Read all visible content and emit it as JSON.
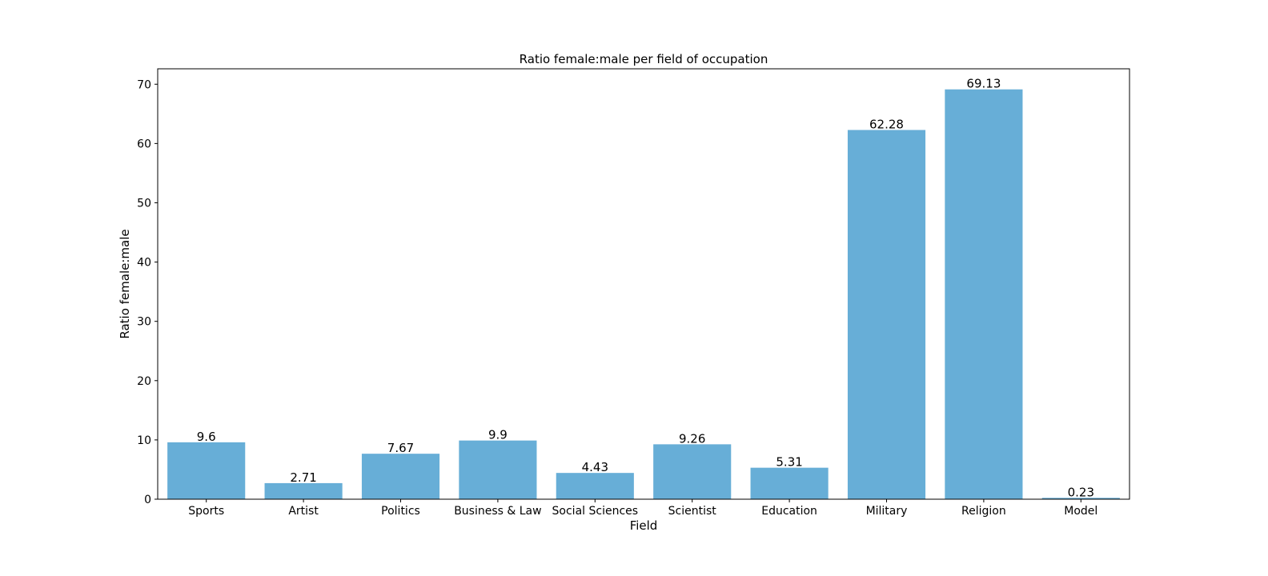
{
  "chart_data": {
    "type": "bar",
    "title": "Ratio female:male per field of occupation",
    "xlabel": "Field",
    "ylabel": "Ratio female:male",
    "categories": [
      "Sports",
      "Artist",
      "Politics",
      "Business & Law",
      "Social Sciences",
      "Scientist",
      "Education",
      "Military",
      "Religion",
      "Model"
    ],
    "values": [
      9.6,
      2.71,
      7.67,
      9.9,
      4.43,
      9.26,
      5.31,
      62.28,
      69.13,
      0.23
    ],
    "value_labels": [
      "9.6",
      "2.71",
      "7.67",
      "9.9",
      "4.43",
      "9.26",
      "5.31",
      "62.28",
      "69.13",
      "0.23"
    ],
    "ylim": [
      0,
      72.6
    ],
    "yticks": [
      0,
      10,
      20,
      30,
      40,
      50,
      60,
      70
    ],
    "grid": false,
    "bar_color": "#67AED7"
  }
}
